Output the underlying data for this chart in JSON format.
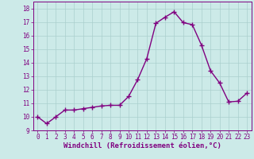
{
  "x": [
    0,
    1,
    2,
    3,
    4,
    5,
    6,
    7,
    8,
    9,
    10,
    11,
    12,
    13,
    14,
    15,
    16,
    17,
    18,
    19,
    20,
    21,
    22,
    23
  ],
  "y": [
    10.0,
    9.5,
    10.0,
    10.5,
    10.5,
    10.6,
    10.7,
    10.8,
    10.85,
    10.85,
    11.5,
    12.75,
    14.3,
    16.9,
    17.35,
    17.75,
    16.95,
    16.8,
    15.3,
    13.4,
    12.5,
    11.1,
    11.15,
    11.75
  ],
  "line_color": "#800080",
  "marker": "+",
  "marker_size": 4,
  "linewidth": 1.0,
  "bg_color": "#cceae8",
  "grid_color": "#aacfcd",
  "xlabel": "Windchill (Refroidissement éolien,°C)",
  "xlabel_fontsize": 6.5,
  "xlim": [
    -0.5,
    23.5
  ],
  "ylim": [
    9,
    18.5
  ],
  "yticks": [
    9,
    10,
    11,
    12,
    13,
    14,
    15,
    16,
    17,
    18
  ],
  "xticks": [
    0,
    1,
    2,
    3,
    4,
    5,
    6,
    7,
    8,
    9,
    10,
    11,
    12,
    13,
    14,
    15,
    16,
    17,
    18,
    19,
    20,
    21,
    22,
    23
  ],
  "tick_fontsize": 5.5,
  "tick_color": "#800080",
  "spine_color": "#800080"
}
